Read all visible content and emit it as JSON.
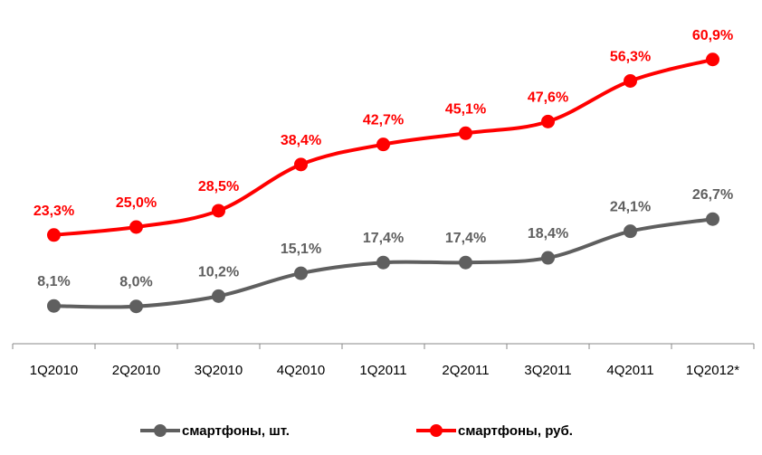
{
  "chart_data": {
    "type": "line",
    "categories": [
      "1Q2010",
      "2Q2010",
      "3Q2010",
      "4Q2010",
      "1Q2011",
      "2Q2011",
      "3Q2011",
      "4Q2011",
      "1Q2012*"
    ],
    "series": [
      {
        "name": "смартфоны, шт.",
        "color": "#5f5f5f",
        "values": [
          8.1,
          8.0,
          10.2,
          15.1,
          17.4,
          17.4,
          18.4,
          24.1,
          26.7
        ],
        "labels": [
          "8,1%",
          "8,0%",
          "10,2%",
          "15,1%",
          "17,4%",
          "17,4%",
          "18,4%",
          "24,1%",
          "26,7%"
        ]
      },
      {
        "name": "смартфоны, руб.",
        "color": "#ff0000",
        "values": [
          23.3,
          25.0,
          28.5,
          38.4,
          42.7,
          45.1,
          47.6,
          56.3,
          60.9
        ],
        "labels": [
          "23,3%",
          "25,0%",
          "28,5%",
          "38,4%",
          "42,7%",
          "45,1%",
          "47,6%",
          "56,3%",
          "60,9%"
        ]
      }
    ],
    "title": "",
    "xlabel": "",
    "ylabel": "",
    "ylim": [
      0,
      73
    ],
    "grid": false,
    "legend": "bottom"
  }
}
